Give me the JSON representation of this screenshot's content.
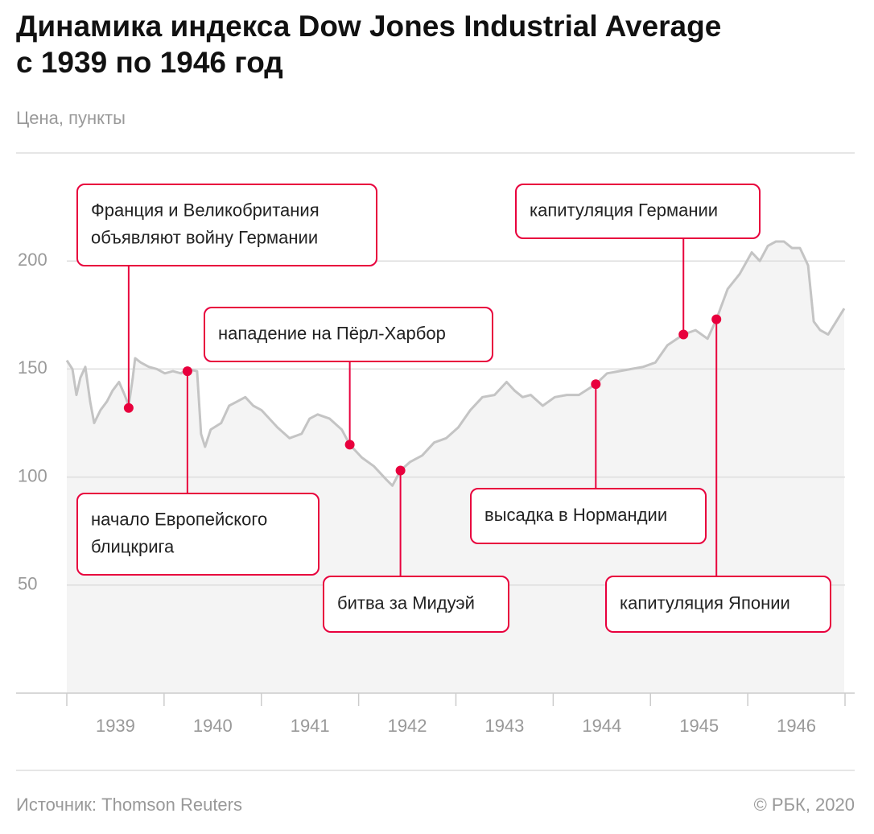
{
  "chart_data": {
    "type": "line",
    "title": [
      "Динамика индекса Dow Jones Industrial Average",
      "с 1939 по 1946 год"
    ],
    "subtitle": "Цена, пункты",
    "source": "Источник: Thomson Reuters",
    "credit": "© РБК, 2020",
    "categories": [
      "1939",
      "1940",
      "1941",
      "1942",
      "1943",
      "1944",
      "1945",
      "1946"
    ],
    "xlim": [
      1939,
      1947
    ],
    "ylim": [
      0,
      250
    ],
    "yticks": [
      50,
      100,
      150,
      200
    ],
    "grid": true,
    "color": "#c4c4c4",
    "accent": "#e8003d",
    "x": [
      1939.0,
      1939.058,
      1939.099,
      1939.14,
      1939.19,
      1939.24,
      1939.281,
      1939.347,
      1939.413,
      1939.471,
      1939.537,
      1939.595,
      1939.636,
      1939.678,
      1939.702,
      1939.76,
      1939.843,
      1939.926,
      1940.008,
      1940.091,
      1940.174,
      1940.24,
      1940.339,
      1940.38,
      1940.421,
      1940.479,
      1940.587,
      1940.669,
      1940.752,
      1940.835,
      1940.917,
      1941.0,
      1941.083,
      1941.165,
      1941.289,
      1941.413,
      1941.496,
      1941.579,
      1941.702,
      1941.826,
      1941.909,
      1942.033,
      1942.157,
      1942.281,
      1942.347,
      1942.43,
      1942.529,
      1942.653,
      1942.777,
      1942.901,
      1943.025,
      1943.149,
      1943.273,
      1943.397,
      1943.521,
      1943.603,
      1943.686,
      1943.769,
      1943.893,
      1944.017,
      1944.14,
      1944.264,
      1944.438,
      1944.554,
      1944.678,
      1944.802,
      1944.926,
      1945.05,
      1945.174,
      1945.339,
      1945.463,
      1945.587,
      1945.678,
      1945.793,
      1945.917,
      1946.041,
      1946.124,
      1946.207,
      1946.289,
      1946.372,
      1946.455,
      1946.537,
      1946.62,
      1946.678,
      1946.744,
      1946.826,
      1946.909,
      1946.992
    ],
    "values": [
      154,
      150,
      138,
      146,
      151,
      135,
      125,
      131,
      135,
      140,
      144,
      138,
      133,
      146,
      155,
      153,
      151,
      150,
      148,
      149,
      148,
      150,
      149,
      120,
      114,
      122,
      125,
      133,
      135,
      137,
      133,
      131,
      127,
      123,
      118,
      120,
      127,
      129,
      127,
      122,
      115,
      109,
      105,
      99,
      96,
      103,
      107,
      110,
      116,
      118,
      123,
      131,
      137,
      138,
      144,
      140,
      137,
      138,
      133,
      137,
      138,
      138,
      143,
      148,
      149,
      150,
      151,
      153,
      161,
      166,
      168,
      164,
      173,
      187,
      194,
      204,
      200,
      207,
      209,
      209,
      206,
      206,
      198,
      172,
      168,
      166,
      172,
      178
    ],
    "annotations": [
      {
        "text": [
          "Франция и Великобритания",
          "объявляют войну Германии"
        ],
        "x": 1939.636,
        "y": 132
      },
      {
        "text": [
          "начало Европейского",
          "блицкрига"
        ],
        "x": 1940.24,
        "y": 149
      },
      {
        "text": [
          "нападение на Пёрл-Харбор"
        ],
        "x": 1941.909,
        "y": 115
      },
      {
        "text": [
          "битва за Мидуэй"
        ],
        "x": 1942.43,
        "y": 103
      },
      {
        "text": [
          "высадка в Нормандии"
        ],
        "x": 1944.438,
        "y": 143
      },
      {
        "text": [
          "капитуляция Германии"
        ],
        "x": 1945.339,
        "y": 166
      },
      {
        "text": [
          "капитуляция Японии"
        ],
        "x": 1945.678,
        "y": 173
      }
    ]
  }
}
